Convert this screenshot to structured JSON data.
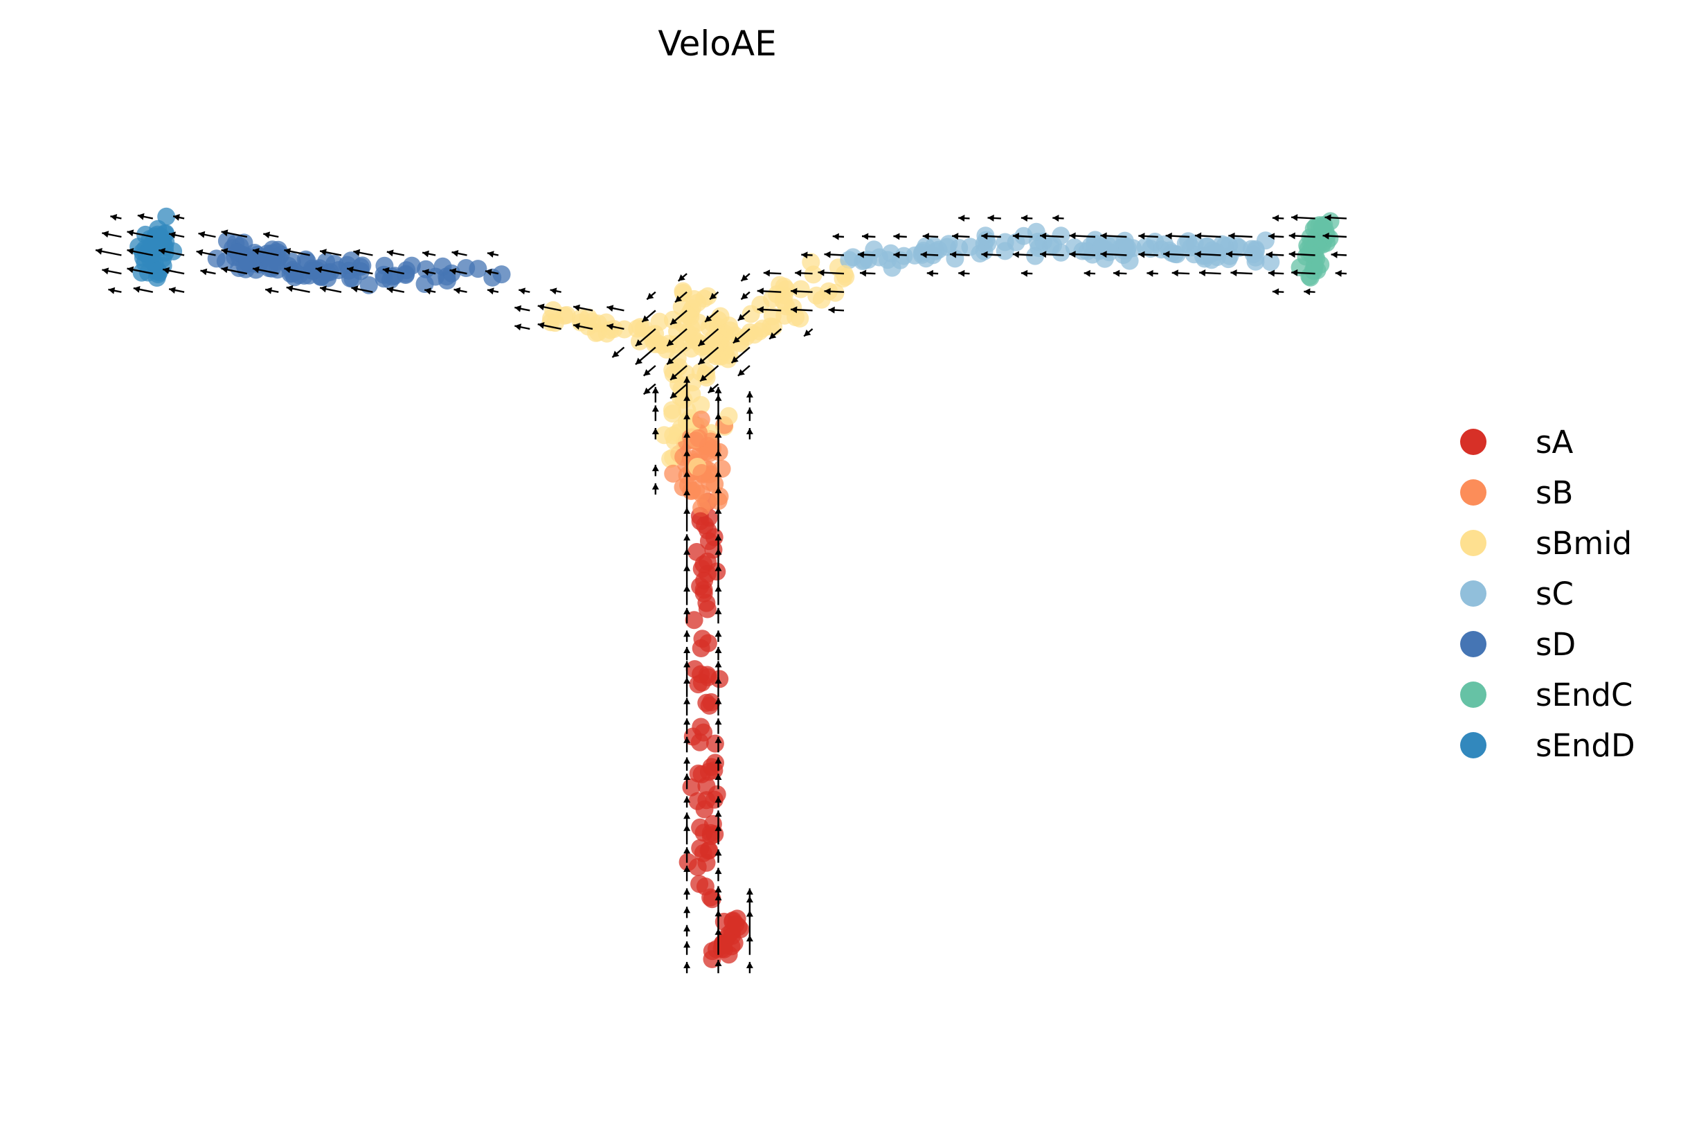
{
  "chart_data": {
    "type": "scatter",
    "title": "VeloAE",
    "xlabel": "",
    "ylabel": "",
    "grid": false,
    "axes_visible": false,
    "legend_position": "right",
    "x_range": [
      0,
      100
    ],
    "y_range": [
      0,
      100
    ],
    "categories": [
      "sA",
      "sB",
      "sBmid",
      "sC",
      "sD",
      "sEndC",
      "sEndD"
    ],
    "colors": {
      "sA": "#d73027",
      "sB": "#fc8d59",
      "sBmid": "#fee090",
      "sC": "#91bfdb",
      "sD": "#4575b4",
      "sEndC": "#66c2a5",
      "sEndD": "#3288bd"
    },
    "series": [
      {
        "name": "sA",
        "clusters": [
          {
            "x0": 49.0,
            "y0": 59.5,
            "x1": 49.0,
            "y1": 18.0,
            "w": 1.6,
            "n": 70
          },
          {
            "x0": 49.5,
            "y0": 11.5,
            "x1": 51.5,
            "y1": 15.5,
            "w": 1.0,
            "n": 22
          }
        ]
      },
      {
        "name": "sB",
        "clusters": [
          {
            "x0": 48.5,
            "y0": 67.0,
            "x1": 48.5,
            "y1": 60.0,
            "w": 2.4,
            "n": 50
          }
        ]
      },
      {
        "name": "sBmid",
        "clusters": [
          {
            "x0": 48.0,
            "y0": 80.0,
            "x1": 48.0,
            "y1": 65.5,
            "w": 3.0,
            "n": 55
          },
          {
            "x0": 36.0,
            "y0": 80.0,
            "x1": 46.0,
            "y1": 77.0,
            "w": 2.0,
            "n": 30
          },
          {
            "x0": 59.0,
            "y0": 84.0,
            "x1": 49.0,
            "y1": 76.0,
            "w": 2.6,
            "n": 45
          },
          {
            "x0": 48.0,
            "y0": 82.5,
            "x1": 51.0,
            "y1": 75.0,
            "w": 2.0,
            "n": 25
          }
        ]
      },
      {
        "name": "sC",
        "clusters": [
          {
            "x0": 61.0,
            "y0": 85.5,
            "x1": 76.0,
            "y1": 88.0,
            "w": 1.6,
            "n": 40
          },
          {
            "x0": 76.0,
            "y0": 87.0,
            "x1": 94.0,
            "y1": 86.5,
            "w": 1.5,
            "n": 70
          }
        ]
      },
      {
        "name": "sD",
        "clusters": [
          {
            "x0": 11.0,
            "y0": 86.5,
            "x1": 20.0,
            "y1": 84.0,
            "w": 1.8,
            "n": 70
          },
          {
            "x0": 19.0,
            "y0": 84.5,
            "x1": 32.0,
            "y1": 84.0,
            "w": 1.5,
            "n": 30
          }
        ]
      },
      {
        "name": "sEndC",
        "clusters": [
          {
            "x0": 97.0,
            "y0": 84.0,
            "x1": 98.0,
            "y1": 89.5,
            "w": 1.3,
            "n": 45
          }
        ]
      },
      {
        "name": "sEndD",
        "clusters": [
          {
            "x0": 4.5,
            "y0": 84.0,
            "x1": 5.5,
            "y1": 89.5,
            "w": 1.5,
            "n": 45
          }
        ]
      }
    ],
    "velocity_field": {
      "grid_x_range": [
        0,
        100
      ],
      "grid_y_range": [
        6,
        92
      ],
      "grid_cols": 40,
      "grid_rows": 44,
      "color": "#000000"
    }
  }
}
